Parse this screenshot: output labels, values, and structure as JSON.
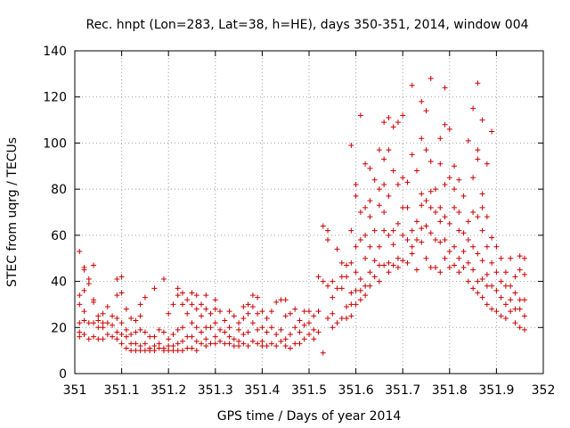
{
  "chart_data": {
    "type": "scatter",
    "title": "Rec. hnpt (Lon=283, Lat=38, h=HE), days 350-351, 2014, window 004",
    "xlabel": "GPS time / Days of year 2014",
    "ylabel": "STEC from uqrg / TECUs",
    "xlim": [
      351,
      352
    ],
    "ylim": [
      0,
      140
    ],
    "xticks": [
      351,
      351.1,
      351.2,
      351.3,
      351.4,
      351.5,
      351.6,
      351.7,
      351.8,
      351.9,
      352
    ],
    "xtick_labels": [
      "351",
      "351.1",
      "351.2",
      "351.3",
      "351.4",
      "351.5",
      "351.6",
      "351.7",
      "351.8",
      "351.9",
      "352"
    ],
    "yticks": [
      0,
      20,
      40,
      60,
      80,
      100,
      120,
      140
    ],
    "ytick_labels": [
      "0",
      "20",
      "40",
      "60",
      "80",
      "100",
      "120",
      "140"
    ],
    "grid": true,
    "marker": "+",
    "color": "#cc0000",
    "points": [
      [
        351.01,
        53
      ],
      [
        351.01,
        34
      ],
      [
        351.01,
        30
      ],
      [
        351.01,
        22
      ],
      [
        351.01,
        18
      ],
      [
        351.01,
        16
      ],
      [
        351.02,
        46
      ],
      [
        351.02,
        45
      ],
      [
        351.02,
        36
      ],
      [
        351.02,
        27
      ],
      [
        351.02,
        23
      ],
      [
        351.02,
        17
      ],
      [
        351.03,
        41
      ],
      [
        351.03,
        39
      ],
      [
        351.03,
        22
      ],
      [
        351.03,
        15
      ],
      [
        351.04,
        47
      ],
      [
        351.04,
        32
      ],
      [
        351.04,
        31
      ],
      [
        351.04,
        22
      ],
      [
        351.04,
        16
      ],
      [
        351.05,
        25
      ],
      [
        351.05,
        23
      ],
      [
        351.05,
        20
      ],
      [
        351.05,
        15
      ],
      [
        351.06,
        26
      ],
      [
        351.06,
        22
      ],
      [
        351.06,
        20
      ],
      [
        351.06,
        15
      ],
      [
        351.07,
        29
      ],
      [
        351.07,
        22
      ],
      [
        351.07,
        17
      ],
      [
        351.08,
        25
      ],
      [
        351.08,
        21
      ],
      [
        351.08,
        16
      ],
      [
        351.09,
        41
      ],
      [
        351.09,
        34
      ],
      [
        351.09,
        24
      ],
      [
        351.09,
        18
      ],
      [
        351.09,
        15
      ],
      [
        351.1,
        42
      ],
      [
        351.1,
        35
      ],
      [
        351.1,
        22
      ],
      [
        351.1,
        17
      ],
      [
        351.1,
        13
      ],
      [
        351.11,
        28
      ],
      [
        351.11,
        19
      ],
      [
        351.11,
        16
      ],
      [
        351.11,
        11
      ],
      [
        351.12,
        24
      ],
      [
        351.12,
        17
      ],
      [
        351.12,
        13
      ],
      [
        351.12,
        10
      ],
      [
        351.13,
        23
      ],
      [
        351.13,
        18
      ],
      [
        351.13,
        13
      ],
      [
        351.13,
        10
      ],
      [
        351.14,
        30
      ],
      [
        351.14,
        25
      ],
      [
        351.14,
        19
      ],
      [
        351.14,
        12
      ],
      [
        351.14,
        10
      ],
      [
        351.15,
        33
      ],
      [
        351.15,
        18
      ],
      [
        351.15,
        13
      ],
      [
        351.15,
        10
      ],
      [
        351.16,
        16
      ],
      [
        351.16,
        11
      ],
      [
        351.16,
        10
      ],
      [
        351.17,
        37
      ],
      [
        351.17,
        16
      ],
      [
        351.17,
        12
      ],
      [
        351.17,
        10
      ],
      [
        351.18,
        19
      ],
      [
        351.18,
        13
      ],
      [
        351.18,
        11
      ],
      [
        351.19,
        41
      ],
      [
        351.19,
        18
      ],
      [
        351.19,
        11
      ],
      [
        351.19,
        10
      ],
      [
        351.2,
        26
      ],
      [
        351.2,
        15
      ],
      [
        351.2,
        12
      ],
      [
        351.2,
        10
      ],
      [
        351.21,
        30
      ],
      [
        351.21,
        17
      ],
      [
        351.21,
        12
      ],
      [
        351.21,
        10
      ],
      [
        351.22,
        37
      ],
      [
        351.22,
        34
      ],
      [
        351.22,
        19
      ],
      [
        351.22,
        13
      ],
      [
        351.22,
        10
      ],
      [
        351.23,
        35
      ],
      [
        351.23,
        30
      ],
      [
        351.23,
        20
      ],
      [
        351.23,
        14
      ],
      [
        351.23,
        10
      ],
      [
        351.24,
        32
      ],
      [
        351.24,
        26
      ],
      [
        351.24,
        16
      ],
      [
        351.24,
        11
      ],
      [
        351.25,
        35
      ],
      [
        351.25,
        30
      ],
      [
        351.25,
        22
      ],
      [
        351.25,
        16
      ],
      [
        351.25,
        11
      ],
      [
        351.26,
        34
      ],
      [
        351.26,
        28
      ],
      [
        351.26,
        20
      ],
      [
        351.26,
        14
      ],
      [
        351.26,
        10
      ],
      [
        351.27,
        30
      ],
      [
        351.27,
        25
      ],
      [
        351.27,
        18
      ],
      [
        351.27,
        13
      ],
      [
        351.28,
        34
      ],
      [
        351.28,
        28
      ],
      [
        351.28,
        20
      ],
      [
        351.28,
        15
      ],
      [
        351.28,
        12
      ],
      [
        351.29,
        26
      ],
      [
        351.29,
        20
      ],
      [
        351.29,
        13
      ],
      [
        351.3,
        32
      ],
      [
        351.3,
        28
      ],
      [
        351.3,
        22
      ],
      [
        351.3,
        16
      ],
      [
        351.3,
        13
      ],
      [
        351.31,
        27
      ],
      [
        351.31,
        19
      ],
      [
        351.31,
        14
      ],
      [
        351.32,
        23
      ],
      [
        351.32,
        18
      ],
      [
        351.32,
        13
      ],
      [
        351.33,
        27
      ],
      [
        351.33,
        20
      ],
      [
        351.33,
        16
      ],
      [
        351.33,
        13
      ],
      [
        351.34,
        25
      ],
      [
        351.34,
        15
      ],
      [
        351.34,
        12
      ],
      [
        351.35,
        22
      ],
      [
        351.35,
        19
      ],
      [
        351.35,
        14
      ],
      [
        351.35,
        12
      ],
      [
        351.36,
        29
      ],
      [
        351.36,
        24
      ],
      [
        351.36,
        17
      ],
      [
        351.36,
        13
      ],
      [
        351.37,
        30
      ],
      [
        351.37,
        26
      ],
      [
        351.37,
        18
      ],
      [
        351.37,
        12
      ],
      [
        351.38,
        34
      ],
      [
        351.38,
        29
      ],
      [
        351.38,
        22
      ],
      [
        351.38,
        14
      ],
      [
        351.39,
        33
      ],
      [
        351.39,
        26
      ],
      [
        351.39,
        19
      ],
      [
        351.39,
        13
      ],
      [
        351.4,
        27
      ],
      [
        351.4,
        20
      ],
      [
        351.4,
        14
      ],
      [
        351.4,
        12
      ],
      [
        351.41,
        24
      ],
      [
        351.41,
        18
      ],
      [
        351.41,
        12
      ],
      [
        351.42,
        27
      ],
      [
        351.42,
        20
      ],
      [
        351.42,
        13
      ],
      [
        351.43,
        31
      ],
      [
        351.43,
        17
      ],
      [
        351.43,
        12
      ],
      [
        351.44,
        32
      ],
      [
        351.44,
        19
      ],
      [
        351.44,
        14
      ],
      [
        351.45,
        32
      ],
      [
        351.45,
        25
      ],
      [
        351.45,
        15
      ],
      [
        351.45,
        12
      ],
      [
        351.46,
        26
      ],
      [
        351.46,
        17
      ],
      [
        351.46,
        11
      ],
      [
        351.47,
        28
      ],
      [
        351.47,
        20
      ],
      [
        351.47,
        13
      ],
      [
        351.48,
        23
      ],
      [
        351.48,
        18
      ],
      [
        351.48,
        13
      ],
      [
        351.49,
        27
      ],
      [
        351.49,
        21
      ],
      [
        351.49,
        15
      ],
      [
        351.5,
        27
      ],
      [
        351.5,
        22
      ],
      [
        351.5,
        17
      ],
      [
        351.51,
        25
      ],
      [
        351.51,
        19
      ],
      [
        351.51,
        15
      ],
      [
        351.52,
        42
      ],
      [
        351.52,
        27
      ],
      [
        351.52,
        18
      ],
      [
        351.53,
        64
      ],
      [
        351.53,
        40
      ],
      [
        351.53,
        9
      ],
      [
        351.54,
        62
      ],
      [
        351.54,
        58
      ],
      [
        351.54,
        38
      ],
      [
        351.54,
        24
      ],
      [
        351.55,
        40
      ],
      [
        351.55,
        33
      ],
      [
        351.55,
        26
      ],
      [
        351.55,
        20
      ],
      [
        351.56,
        54
      ],
      [
        351.56,
        37
      ],
      [
        351.56,
        22
      ],
      [
        351.57,
        48
      ],
      [
        351.57,
        42
      ],
      [
        351.57,
        37
      ],
      [
        351.57,
        24
      ],
      [
        351.58,
        47
      ],
      [
        351.58,
        42
      ],
      [
        351.58,
        29
      ],
      [
        351.58,
        24
      ],
      [
        351.59,
        99
      ],
      [
        351.59,
        62
      ],
      [
        351.59,
        48
      ],
      [
        351.59,
        35
      ],
      [
        351.59,
        30
      ],
      [
        351.59,
        25
      ],
      [
        351.6,
        82
      ],
      [
        351.6,
        77
      ],
      [
        351.6,
        55
      ],
      [
        351.6,
        44
      ],
      [
        351.6,
        36
      ],
      [
        351.6,
        30
      ],
      [
        351.61,
        112
      ],
      [
        351.61,
        70
      ],
      [
        351.61,
        58
      ],
      [
        351.61,
        41
      ],
      [
        351.61,
        36
      ],
      [
        351.61,
        32
      ],
      [
        351.62,
        91
      ],
      [
        351.62,
        72
      ],
      [
        351.62,
        60
      ],
      [
        351.62,
        50
      ],
      [
        351.62,
        38
      ],
      [
        351.62,
        34
      ],
      [
        351.63,
        89
      ],
      [
        351.63,
        75
      ],
      [
        351.63,
        68
      ],
      [
        351.63,
        55
      ],
      [
        351.63,
        44
      ],
      [
        351.63,
        38
      ],
      [
        351.64,
        84
      ],
      [
        351.64,
        62
      ],
      [
        351.64,
        49
      ],
      [
        351.64,
        42
      ],
      [
        351.65,
        97
      ],
      [
        351.65,
        80
      ],
      [
        351.65,
        73
      ],
      [
        351.65,
        55
      ],
      [
        351.65,
        47
      ],
      [
        351.65,
        40
      ],
      [
        351.66,
        109
      ],
      [
        351.66,
        93
      ],
      [
        351.66,
        82
      ],
      [
        351.66,
        70
      ],
      [
        351.66,
        62
      ],
      [
        351.66,
        47
      ],
      [
        351.67,
        111
      ],
      [
        351.67,
        97
      ],
      [
        351.67,
        77
      ],
      [
        351.67,
        60
      ],
      [
        351.67,
        48
      ],
      [
        351.67,
        44
      ],
      [
        351.68,
        107
      ],
      [
        351.68,
        88
      ],
      [
        351.68,
        62
      ],
      [
        351.68,
        56
      ],
      [
        351.68,
        47
      ],
      [
        351.69,
        109
      ],
      [
        351.69,
        82
      ],
      [
        351.69,
        65
      ],
      [
        351.69,
        50
      ],
      [
        351.69,
        46
      ],
      [
        351.7,
        112
      ],
      [
        351.7,
        85
      ],
      [
        351.7,
        72
      ],
      [
        351.7,
        60
      ],
      [
        351.7,
        49
      ],
      [
        351.71,
        83
      ],
      [
        351.71,
        72
      ],
      [
        351.71,
        58
      ],
      [
        351.71,
        48
      ],
      [
        351.72,
        125
      ],
      [
        351.72,
        95
      ],
      [
        351.72,
        62
      ],
      [
        351.72,
        55
      ],
      [
        351.72,
        52
      ],
      [
        351.73,
        88
      ],
      [
        351.73,
        66
      ],
      [
        351.73,
        58
      ],
      [
        351.73,
        45
      ],
      [
        351.74,
        118
      ],
      [
        351.74,
        102
      ],
      [
        351.74,
        78
      ],
      [
        351.74,
        73
      ],
      [
        351.74,
        63
      ],
      [
        351.74,
        57
      ],
      [
        351.75,
        114
      ],
      [
        351.75,
        97
      ],
      [
        351.75,
        75
      ],
      [
        351.75,
        64
      ],
      [
        351.75,
        50
      ],
      [
        351.76,
        128
      ],
      [
        351.76,
        92
      ],
      [
        351.76,
        79
      ],
      [
        351.76,
        72
      ],
      [
        351.76,
        61
      ],
      [
        351.76,
        46
      ],
      [
        351.77,
        80
      ],
      [
        351.77,
        70
      ],
      [
        351.77,
        58
      ],
      [
        351.77,
        46
      ],
      [
        351.78,
        102
      ],
      [
        351.78,
        91
      ],
      [
        351.78,
        72
      ],
      [
        351.78,
        66
      ],
      [
        351.78,
        57
      ],
      [
        351.78,
        44
      ],
      [
        351.79,
        124
      ],
      [
        351.79,
        108
      ],
      [
        351.79,
        82
      ],
      [
        351.79,
        68
      ],
      [
        351.79,
        58
      ],
      [
        351.79,
        50
      ],
      [
        351.8,
        106
      ],
      [
        351.8,
        85
      ],
      [
        351.8,
        65
      ],
      [
        351.8,
        53
      ],
      [
        351.8,
        46
      ],
      [
        351.81,
        90
      ],
      [
        351.81,
        80
      ],
      [
        351.81,
        72
      ],
      [
        351.81,
        55
      ],
      [
        351.81,
        47
      ],
      [
        351.82,
        84
      ],
      [
        351.82,
        70
      ],
      [
        351.82,
        62
      ],
      [
        351.82,
        50
      ],
      [
        351.82,
        44
      ],
      [
        351.83,
        77
      ],
      [
        351.83,
        61
      ],
      [
        351.83,
        53
      ],
      [
        351.83,
        46
      ],
      [
        351.84,
        101
      ],
      [
        351.84,
        66
      ],
      [
        351.84,
        58
      ],
      [
        351.84,
        48
      ],
      [
        351.84,
        40
      ],
      [
        351.85,
        115
      ],
      [
        351.85,
        85
      ],
      [
        351.85,
        70
      ],
      [
        351.85,
        55
      ],
      [
        351.85,
        45
      ],
      [
        351.85,
        37
      ],
      [
        351.86,
        126
      ],
      [
        351.86,
        97
      ],
      [
        351.86,
        93
      ],
      [
        351.86,
        68
      ],
      [
        351.86,
        52
      ],
      [
        351.86,
        40
      ],
      [
        351.86,
        35
      ],
      [
        351.87,
        110
      ],
      [
        351.87,
        78
      ],
      [
        351.87,
        72
      ],
      [
        351.87,
        62
      ],
      [
        351.87,
        49
      ],
      [
        351.87,
        41
      ],
      [
        351.87,
        33
      ],
      [
        351.88,
        91
      ],
      [
        351.88,
        68
      ],
      [
        351.88,
        55
      ],
      [
        351.88,
        43
      ],
      [
        351.88,
        38
      ],
      [
        351.88,
        30
      ],
      [
        351.89,
        105
      ],
      [
        351.89,
        59
      ],
      [
        351.89,
        48
      ],
      [
        351.89,
        38
      ],
      [
        351.89,
        28
      ],
      [
        351.9,
        55
      ],
      [
        351.9,
        44
      ],
      [
        351.9,
        36
      ],
      [
        351.9,
        27
      ],
      [
        351.91,
        50
      ],
      [
        351.91,
        40
      ],
      [
        351.91,
        33
      ],
      [
        351.91,
        25
      ],
      [
        351.92,
        44
      ],
      [
        351.92,
        38
      ],
      [
        351.92,
        30
      ],
      [
        351.92,
        24
      ],
      [
        351.93,
        50
      ],
      [
        351.93,
        38
      ],
      [
        351.93,
        32
      ],
      [
        351.93,
        27
      ],
      [
        351.94,
        42
      ],
      [
        351.94,
        35
      ],
      [
        351.94,
        28
      ],
      [
        351.94,
        22
      ],
      [
        351.95,
        51
      ],
      [
        351.95,
        45
      ],
      [
        351.95,
        32
      ],
      [
        351.95,
        28
      ],
      [
        351.95,
        20
      ],
      [
        351.96,
        50
      ],
      [
        351.96,
        43
      ],
      [
        351.96,
        32
      ],
      [
        351.96,
        25
      ],
      [
        351.96,
        19
      ]
    ]
  }
}
